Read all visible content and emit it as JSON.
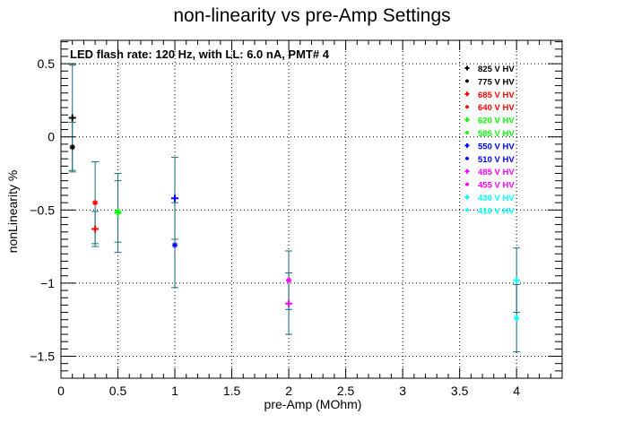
{
  "chart_data": {
    "type": "scatter",
    "title": "non-linearity vs pre-Amp Settings",
    "subtitle": "LED flash rate: 120 Hz, with LL: 6.0 nA, PMT# 4",
    "xlabel": "pre-Amp (MOhm)",
    "ylabel": "nonLinearity %",
    "xlim": [
      0,
      4.4
    ],
    "ylim": [
      -1.65,
      0.66
    ],
    "xticks": [
      0,
      0.5,
      1,
      1.5,
      2,
      2.5,
      3,
      3.5,
      4
    ],
    "xtick_labels": [
      "0",
      "0.5",
      "1",
      "1.5",
      "2",
      "2.5",
      "3",
      "3.5",
      "4"
    ],
    "yticks": [
      -1.5,
      -1,
      -0.5,
      0,
      0.5
    ],
    "ytick_labels": [
      "−1.5",
      "−1",
      "−0.5",
      "0",
      "0.5"
    ],
    "grid": true,
    "legend_position": "top-right",
    "error_bar_color": "#1a6f7a",
    "series": [
      {
        "name": "825 V HV",
        "color": "#000000",
        "marker": "plus",
        "points": [
          {
            "x": 0.1,
            "y": 0.13,
            "err": 0.36
          }
        ]
      },
      {
        "name": "775 V HV",
        "color": "#000000",
        "marker": "asterisk",
        "points": [
          {
            "x": 0.1,
            "y": -0.07,
            "err": 0.17
          }
        ]
      },
      {
        "name": "685 V HV",
        "color": "#ff0000",
        "marker": "plus",
        "points": [
          {
            "x": 0.3,
            "y": -0.63,
            "err": 0.12
          }
        ]
      },
      {
        "name": "640 V HV",
        "color": "#ff0000",
        "marker": "asterisk",
        "points": [
          {
            "x": 0.3,
            "y": -0.45,
            "err": 0.28
          }
        ]
      },
      {
        "name": "620 V HV",
        "color": "#00ff00",
        "marker": "plus",
        "points": [
          {
            "x": 0.5,
            "y": -0.52,
            "err": 0.27
          }
        ]
      },
      {
        "name": "585 V HV",
        "color": "#00ff00",
        "marker": "asterisk",
        "points": [
          {
            "x": 0.5,
            "y": -0.51,
            "err": 0.21
          }
        ]
      },
      {
        "name": "550 V HV",
        "color": "#0000ff",
        "marker": "plus",
        "points": [
          {
            "x": 1.0,
            "y": -0.42,
            "err": 0.28
          }
        ]
      },
      {
        "name": "510 V HV",
        "color": "#0000ff",
        "marker": "asterisk",
        "points": [
          {
            "x": 1.0,
            "y": -0.74,
            "err": 0.29
          }
        ]
      },
      {
        "name": "485 V HV",
        "color": "#ff00ff",
        "marker": "plus",
        "points": [
          {
            "x": 2.0,
            "y": -1.14,
            "err": 0.21
          }
        ]
      },
      {
        "name": "455 V HV",
        "color": "#ff00ff",
        "marker": "asterisk",
        "points": [
          {
            "x": 2.0,
            "y": -0.98,
            "err": 0.2
          }
        ]
      },
      {
        "name": "430 V HV",
        "color": "#00ffff",
        "marker": "plus",
        "points": [
          {
            "x": 4.0,
            "y": -0.98,
            "err": 0.22
          }
        ]
      },
      {
        "name": "410 V HV",
        "color": "#00ffff",
        "marker": "asterisk",
        "points": [
          {
            "x": 4.0,
            "y": -1.24,
            "err": 0.23
          }
        ]
      }
    ]
  }
}
